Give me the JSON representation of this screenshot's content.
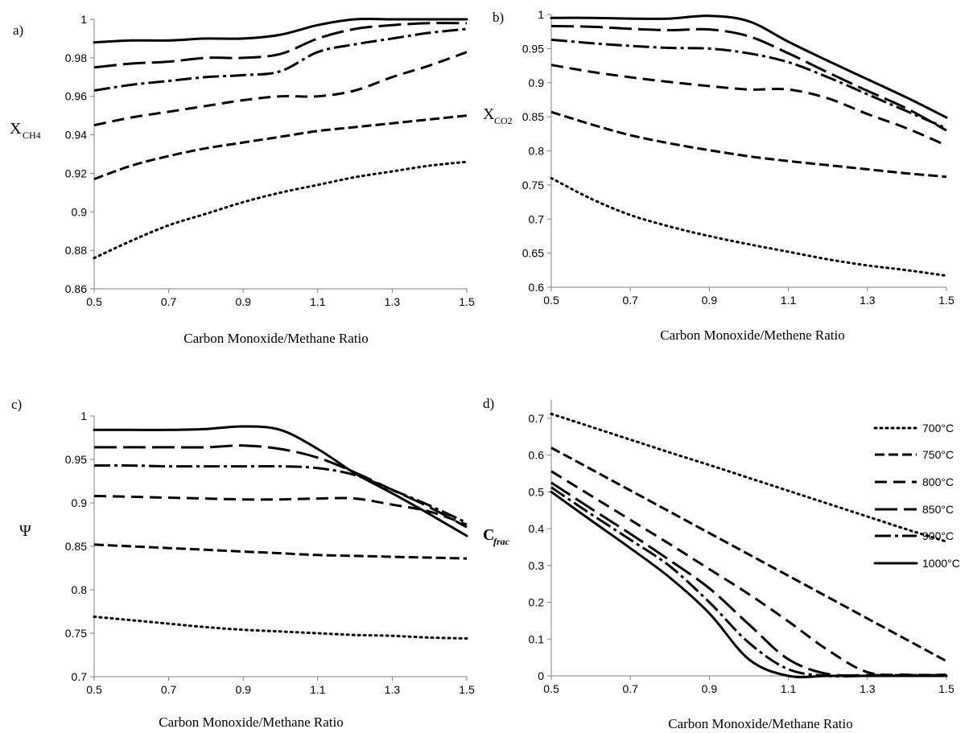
{
  "legend": {
    "entries": [
      "700°C",
      "750°C",
      "800°C",
      "850°C",
      "900°C",
      "1000°C"
    ]
  },
  "chart_data": [
    {
      "panel": "a)",
      "type": "line",
      "xlabel": "Carbon Monoxide/Methane Ratio",
      "ylabel": "X",
      "ylabel_sub": "CH4",
      "xlim": [
        0.5,
        1.5
      ],
      "ylim": [
        0.86,
        1.0
      ],
      "xticks": [
        "0.5",
        "0.7",
        "0.9",
        "1.1",
        "1.3",
        "1.5"
      ],
      "yticks": [
        "0.86",
        "0.88",
        "0.9",
        "0.92",
        "0.94",
        "0.96",
        "0.98",
        "1"
      ],
      "x": [
        0.5,
        0.6,
        0.7,
        0.8,
        0.9,
        1.0,
        1.1,
        1.2,
        1.3,
        1.4,
        1.5
      ],
      "series": [
        {
          "name": "700°C",
          "values": [
            0.876,
            0.885,
            0.893,
            0.899,
            0.905,
            0.91,
            0.914,
            0.918,
            0.921,
            0.924,
            0.926
          ]
        },
        {
          "name": "750°C",
          "values": [
            0.917,
            0.924,
            0.929,
            0.933,
            0.936,
            0.939,
            0.942,
            0.944,
            0.946,
            0.948,
            0.95
          ]
        },
        {
          "name": "800°C",
          "values": [
            0.945,
            0.949,
            0.952,
            0.955,
            0.958,
            0.96,
            0.96,
            0.963,
            0.97,
            0.976,
            0.983
          ]
        },
        {
          "name": "850°C",
          "values": [
            0.975,
            0.977,
            0.978,
            0.98,
            0.98,
            0.982,
            0.99,
            0.995,
            0.997,
            0.998,
            0.998
          ]
        },
        {
          "name": "900°C",
          "values": [
            0.963,
            0.966,
            0.968,
            0.97,
            0.971,
            0.973,
            0.983,
            0.987,
            0.99,
            0.993,
            0.995
          ]
        },
        {
          "name": "1000°C",
          "values": [
            0.988,
            0.989,
            0.989,
            0.99,
            0.99,
            0.992,
            0.997,
            1.0,
            1.0,
            1.0,
            1.0
          ]
        }
      ]
    },
    {
      "panel": "b)",
      "type": "line",
      "xlabel": "Carbon Monoxide/Methene Ratio",
      "ylabel": "X",
      "ylabel_sub": "CO2",
      "xlim": [
        0.5,
        1.5
      ],
      "ylim": [
        0.6,
        1.0
      ],
      "xticks": [
        "0.5",
        "0.7",
        "0.9",
        "1.1",
        "1.3",
        "1.5"
      ],
      "yticks": [
        "0.6",
        "0.65",
        "0.7",
        "0.75",
        "0.8",
        "0.85",
        "0.9",
        "0.95",
        "1"
      ],
      "x": [
        0.5,
        0.6,
        0.7,
        0.8,
        0.9,
        1.0,
        1.1,
        1.2,
        1.3,
        1.4,
        1.5
      ],
      "series": [
        {
          "name": "700°C",
          "values": [
            0.76,
            0.73,
            0.706,
            0.689,
            0.675,
            0.663,
            0.652,
            0.641,
            0.632,
            0.625,
            0.617
          ]
        },
        {
          "name": "750°C",
          "values": [
            0.857,
            0.839,
            0.823,
            0.811,
            0.801,
            0.792,
            0.785,
            0.779,
            0.773,
            0.767,
            0.762
          ]
        },
        {
          "name": "800°C",
          "values": [
            0.926,
            0.916,
            0.908,
            0.901,
            0.895,
            0.89,
            0.89,
            0.877,
            0.854,
            0.833,
            0.808
          ]
        },
        {
          "name": "850°C",
          "values": [
            0.983,
            0.982,
            0.979,
            0.977,
            0.978,
            0.968,
            0.943,
            0.915,
            0.888,
            0.862,
            0.83
          ]
        },
        {
          "name": "900°C",
          "values": [
            0.963,
            0.958,
            0.954,
            0.951,
            0.95,
            0.943,
            0.93,
            0.908,
            0.883,
            0.858,
            0.833
          ]
        },
        {
          "name": "1000°C",
          "values": [
            0.995,
            0.995,
            0.994,
            0.994,
            0.998,
            0.99,
            0.96,
            0.932,
            0.905,
            0.878,
            0.849
          ]
        }
      ]
    },
    {
      "panel": "c)",
      "type": "line",
      "xlabel": "Carbon Monoxide/Methane Ratio",
      "ylabel": "Ψ",
      "xlim": [
        0.5,
        1.5
      ],
      "ylim": [
        0.7,
        1.0
      ],
      "xticks": [
        "0.5",
        "0.7",
        "0.9",
        "1.1",
        "1.3",
        "1.5"
      ],
      "yticks": [
        "0.7",
        "0.75",
        "0.8",
        "0.85",
        "0.9",
        "0.95",
        "1"
      ],
      "x": [
        0.5,
        0.6,
        0.7,
        0.8,
        0.9,
        1.0,
        1.1,
        1.2,
        1.3,
        1.4,
        1.5
      ],
      "series": [
        {
          "name": "700°C",
          "values": [
            0.769,
            0.765,
            0.761,
            0.757,
            0.754,
            0.752,
            0.75,
            0.748,
            0.747,
            0.745,
            0.744
          ]
        },
        {
          "name": "750°C",
          "values": [
            0.852,
            0.85,
            0.848,
            0.846,
            0.844,
            0.842,
            0.84,
            0.839,
            0.838,
            0.837,
            0.836
          ]
        },
        {
          "name": "800°C",
          "values": [
            0.908,
            0.907,
            0.906,
            0.905,
            0.904,
            0.904,
            0.905,
            0.905,
            0.898,
            0.89,
            0.875
          ]
        },
        {
          "name": "850°C",
          "values": [
            0.964,
            0.964,
            0.964,
            0.964,
            0.966,
            0.962,
            0.952,
            0.935,
            0.915,
            0.895,
            0.872
          ]
        },
        {
          "name": "900°C",
          "values": [
            0.943,
            0.943,
            0.942,
            0.942,
            0.942,
            0.942,
            0.94,
            0.932,
            0.915,
            0.897,
            0.877
          ]
        },
        {
          "name": "1000°C",
          "values": [
            0.984,
            0.984,
            0.984,
            0.985,
            0.988,
            0.984,
            0.962,
            0.934,
            0.911,
            0.887,
            0.862
          ]
        }
      ]
    },
    {
      "panel": "d)",
      "type": "line",
      "xlabel": "Carbon Monoxide/Methane Ratio",
      "ylabel": "C",
      "ylabel_sub": "frac",
      "xlim": [
        0.5,
        1.5
      ],
      "ylim": [
        0,
        0.75
      ],
      "xticks": [
        "0.5",
        "0.7",
        "0.9",
        "1.1",
        "1.3",
        "1.5"
      ],
      "yticks": [
        "0",
        "0.1",
        "0.2",
        "0.3",
        "0.4",
        "0.5",
        "0.6",
        "0.7"
      ],
      "x": [
        0.5,
        0.6,
        0.7,
        0.8,
        0.9,
        1.0,
        1.1,
        1.2,
        1.3,
        1.4,
        1.5
      ],
      "series": [
        {
          "name": "700°C",
          "values": [
            0.712,
            0.677,
            0.642,
            0.607,
            0.573,
            0.538,
            0.503,
            0.468,
            0.433,
            0.398,
            0.365
          ]
        },
        {
          "name": "750°C",
          "values": [
            0.62,
            0.562,
            0.504,
            0.446,
            0.388,
            0.33,
            0.272,
            0.214,
            0.156,
            0.098,
            0.04
          ]
        },
        {
          "name": "800°C",
          "values": [
            0.556,
            0.49,
            0.424,
            0.358,
            0.29,
            0.222,
            0.148,
            0.07,
            0.01,
            0.003,
            0.003
          ]
        },
        {
          "name": "850°C",
          "values": [
            0.525,
            0.455,
            0.386,
            0.314,
            0.238,
            0.14,
            0.045,
            0.005,
            0.002,
            0.002,
            0.002
          ]
        },
        {
          "name": "900°C",
          "values": [
            0.512,
            0.44,
            0.37,
            0.298,
            0.2,
            0.09,
            0.018,
            0.0,
            0.0,
            0.0,
            0.0
          ]
        },
        {
          "name": "1000°C",
          "values": [
            0.5,
            0.423,
            0.347,
            0.267,
            0.17,
            0.045,
            0.0,
            0.0,
            0.0,
            0.0,
            0.0
          ]
        }
      ]
    }
  ]
}
